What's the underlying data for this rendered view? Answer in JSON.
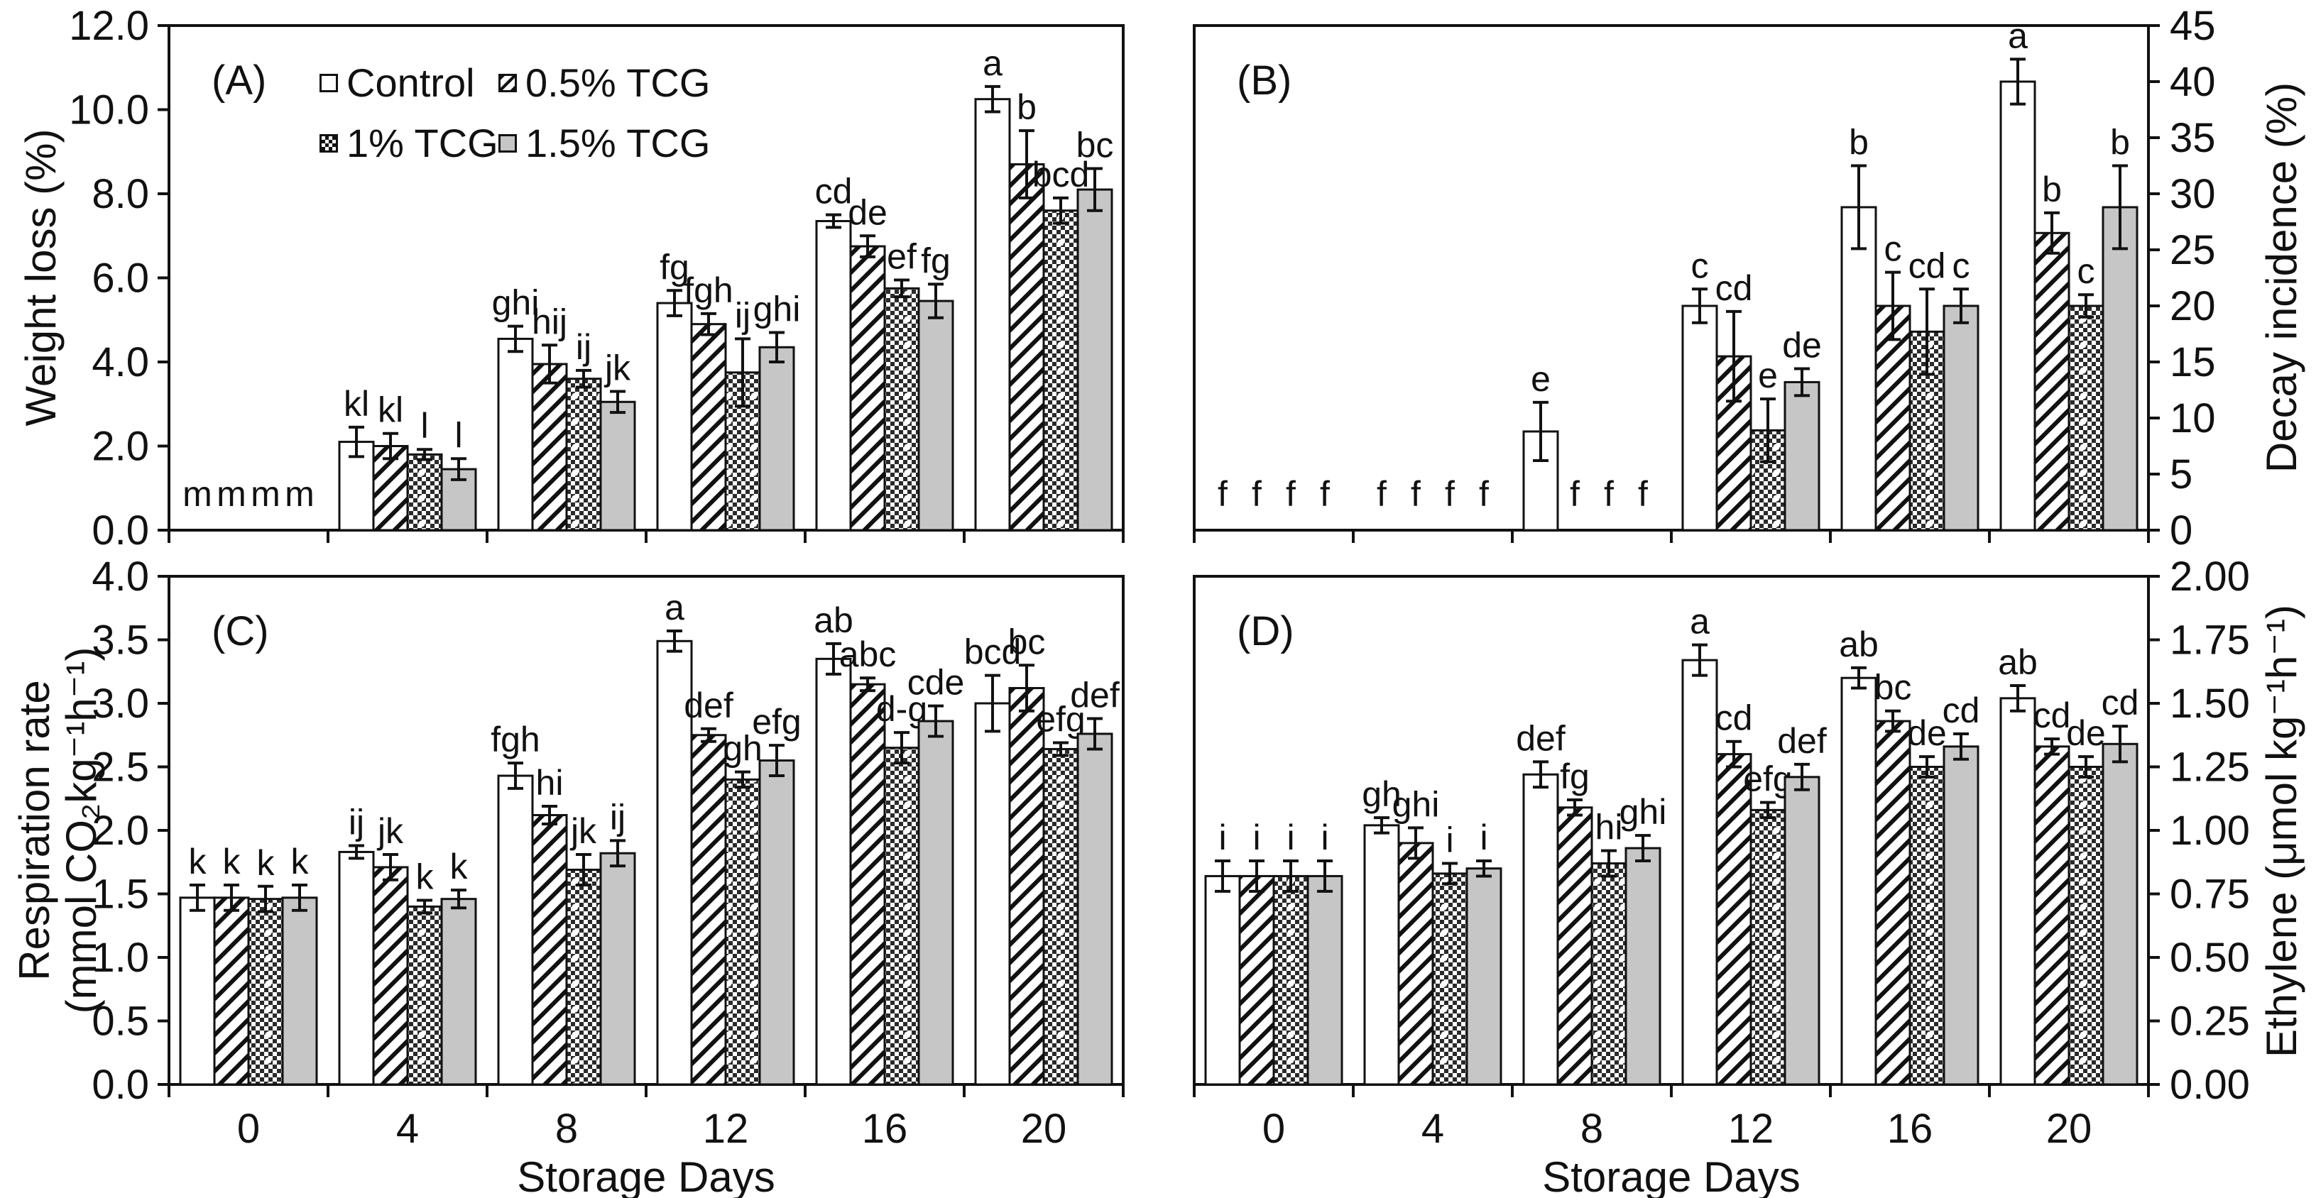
{
  "figure": {
    "xlabel": "Storage Days",
    "categories": [
      "0",
      "4",
      "8",
      "12",
      "16",
      "20"
    ],
    "legend": [
      {
        "label": "Control",
        "pattern": "plain"
      },
      {
        "label": "0.5% TCG",
        "pattern": "hatch"
      },
      {
        "label": "1% TCG",
        "pattern": "checker"
      },
      {
        "label": "1.5% TCG",
        "pattern": "gray"
      }
    ],
    "colors": {
      "ink": "#111111",
      "bar_gray": "#c6c6c6",
      "bar_white": "#ffffff",
      "background": "#ffffff"
    }
  },
  "chart_data": [
    {
      "type": "bar",
      "panel_label": "(A)",
      "ylabel": "Weight loss (%)",
      "axis_side": "left",
      "ylim": [
        0,
        12
      ],
      "ystep": 2,
      "tick_decimals": 1,
      "grid": false,
      "categories": [
        "0",
        "4",
        "8",
        "12",
        "16",
        "20"
      ],
      "series": [
        {
          "name": "Control",
          "values": [
            0,
            2.1,
            4.55,
            5.4,
            7.35,
            10.25
          ],
          "errors": [
            0,
            0.35,
            0.3,
            0.3,
            0.15,
            0.3
          ],
          "letters": [
            "m",
            "kl",
            "ghi",
            "fg",
            "cd",
            "a"
          ]
        },
        {
          "name": "0.5% TCG",
          "values": [
            0,
            2.0,
            3.95,
            4.9,
            6.75,
            8.7
          ],
          "errors": [
            0,
            0.3,
            0.45,
            0.25,
            0.25,
            0.8
          ],
          "letters": [
            "m",
            "kl",
            "hij",
            "fgh",
            "de",
            "b"
          ]
        },
        {
          "name": "1% TCG",
          "values": [
            0,
            1.8,
            3.6,
            3.75,
            5.75,
            7.6
          ],
          "errors": [
            0,
            0.12,
            0.2,
            0.8,
            0.2,
            0.3
          ],
          "letters": [
            "m",
            "l",
            "ij",
            "ij",
            "ef",
            "bcd"
          ]
        },
        {
          "name": "1.5% TCG",
          "values": [
            0,
            1.45,
            3.05,
            4.35,
            5.45,
            8.1
          ],
          "errors": [
            0,
            0.25,
            0.25,
            0.35,
            0.4,
            0.5
          ],
          "letters": [
            "m",
            "l",
            "jk",
            "ghi",
            "fg",
            "bc"
          ]
        }
      ]
    },
    {
      "type": "bar",
      "panel_label": "(B)",
      "ylabel": "Decay incidence (%)",
      "axis_side": "right",
      "ylim": [
        0,
        45
      ],
      "ystep": 5,
      "tick_decimals": 0,
      "grid": false,
      "categories": [
        "0",
        "4",
        "8",
        "12",
        "16",
        "20"
      ],
      "series": [
        {
          "name": "Control",
          "values": [
            0,
            0,
            8.8,
            20,
            28.8,
            40
          ],
          "errors": [
            0,
            0,
            2.6,
            1.5,
            3.7,
            2
          ],
          "letters": [
            "f",
            "f",
            "e",
            "c",
            "b",
            "a"
          ]
        },
        {
          "name": "0.5% TCG",
          "values": [
            0,
            0,
            0,
            15.5,
            20,
            26.5
          ],
          "errors": [
            0,
            0,
            0,
            4,
            3,
            1.8
          ],
          "letters": [
            "f",
            "f",
            "f",
            "cd",
            "c",
            "b"
          ]
        },
        {
          "name": "1% TCG",
          "values": [
            0,
            0,
            0,
            8.9,
            17.7,
            20
          ],
          "errors": [
            0,
            0,
            0,
            2.8,
            3.8,
            1
          ],
          "letters": [
            "f",
            "f",
            "f",
            "e",
            "cd",
            "c"
          ]
        },
        {
          "name": "1.5% TCG",
          "values": [
            0,
            0,
            0,
            13.2,
            20,
            28.8
          ],
          "errors": [
            0,
            0,
            0,
            1.2,
            1.5,
            3.7
          ],
          "letters": [
            "f",
            "f",
            "f",
            "de",
            "c",
            "b"
          ]
        }
      ]
    },
    {
      "type": "bar",
      "panel_label": "(C)",
      "ylabel": "Respiration rate\n(mmol CO₂kg⁻¹h⁻¹)",
      "axis_side": "left",
      "ylim": [
        0,
        4
      ],
      "ystep": 0.5,
      "tick_decimals": 1,
      "grid": false,
      "categories": [
        "0",
        "4",
        "8",
        "12",
        "16",
        "20"
      ],
      "series": [
        {
          "name": "Control",
          "values": [
            1.47,
            1.83,
            2.43,
            3.49,
            3.35,
            3.0
          ],
          "errors": [
            0.1,
            0.05,
            0.1,
            0.08,
            0.12,
            0.22
          ],
          "letters": [
            "k",
            "ij",
            "fgh",
            "a",
            "ab",
            "bcd"
          ]
        },
        {
          "name": "0.5% TCG",
          "values": [
            1.47,
            1.71,
            2.12,
            2.75,
            3.15,
            3.12
          ],
          "errors": [
            0.1,
            0.1,
            0.07,
            0.05,
            0.05,
            0.18
          ],
          "letters": [
            "k",
            "jk",
            "hi",
            "def",
            "abc",
            "bc"
          ]
        },
        {
          "name": "1% TCG",
          "values": [
            1.46,
            1.4,
            1.69,
            2.4,
            2.65,
            2.64
          ],
          "errors": [
            0.1,
            0.05,
            0.12,
            0.06,
            0.12,
            0.05
          ],
          "letters": [
            "k",
            "k",
            "jk",
            "gh",
            "d-g",
            "efg"
          ]
        },
        {
          "name": "1.5% TCG",
          "values": [
            1.47,
            1.46,
            1.82,
            2.55,
            2.86,
            2.76
          ],
          "errors": [
            0.1,
            0.07,
            0.1,
            0.12,
            0.12,
            0.12
          ],
          "letters": [
            "k",
            "k",
            "ij",
            "efg",
            "cde",
            "def"
          ]
        }
      ]
    },
    {
      "type": "bar",
      "panel_label": "(D)",
      "ylabel": "Ethylene (μmol kg⁻¹h⁻¹)",
      "axis_side": "right",
      "ylim": [
        0,
        2
      ],
      "ystep": 0.25,
      "tick_decimals": 2,
      "grid": false,
      "categories": [
        "0",
        "4",
        "8",
        "12",
        "16",
        "20"
      ],
      "series": [
        {
          "name": "Control",
          "values": [
            0.82,
            1.02,
            1.22,
            1.67,
            1.6,
            1.52
          ],
          "errors": [
            0.06,
            0.03,
            0.05,
            0.06,
            0.04,
            0.05
          ],
          "letters": [
            "i",
            "gh",
            "def",
            "a",
            "ab",
            "ab"
          ]
        },
        {
          "name": "0.5% TCG",
          "values": [
            0.82,
            0.95,
            1.09,
            1.3,
            1.43,
            1.33
          ],
          "errors": [
            0.06,
            0.06,
            0.03,
            0.05,
            0.04,
            0.03
          ],
          "letters": [
            "i",
            "ghi",
            "fg",
            "cd",
            "bc",
            "cd"
          ]
        },
        {
          "name": "1% TCG",
          "values": [
            0.82,
            0.83,
            0.87,
            1.08,
            1.25,
            1.25
          ],
          "errors": [
            0.06,
            0.04,
            0.05,
            0.03,
            0.04,
            0.04
          ],
          "letters": [
            "i",
            "i",
            "hi",
            "efg",
            "de",
            "de"
          ]
        },
        {
          "name": "1.5% TCG",
          "values": [
            0.82,
            0.85,
            0.93,
            1.21,
            1.33,
            1.34
          ],
          "errors": [
            0.06,
            0.03,
            0.05,
            0.05,
            0.05,
            0.07
          ],
          "letters": [
            "i",
            "i",
            "ghi",
            "def",
            "cd",
            "cd"
          ]
        }
      ]
    }
  ]
}
